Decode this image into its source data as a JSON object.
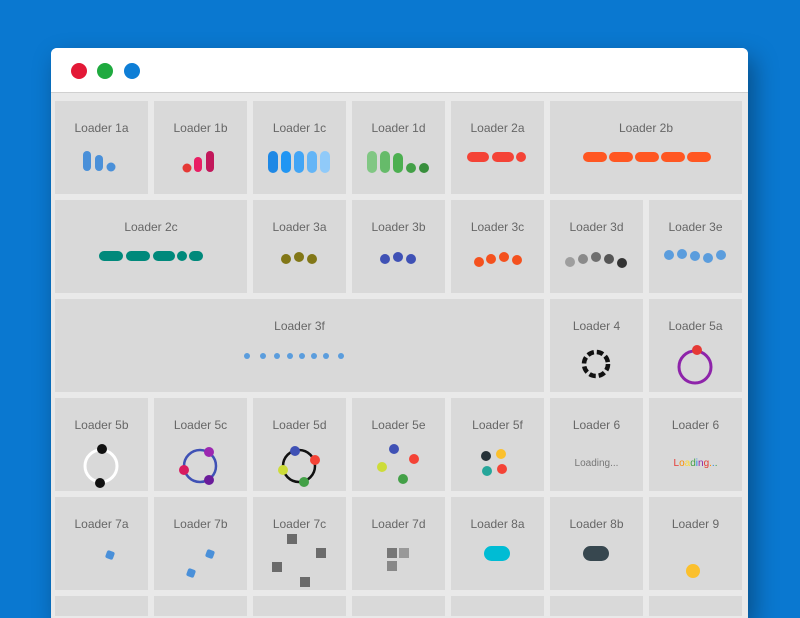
{
  "window": {
    "buttons": [
      "close",
      "minimize",
      "maximize"
    ]
  },
  "colors": {
    "page_bg": "#0a78d0",
    "card_bg": "#d9d9d9",
    "blue": "#4a90d9",
    "pink": "#e91e63",
    "green": "#43a047",
    "red": "#f44336",
    "orange": "#ff5722",
    "teal": "#00897b",
    "olive": "#827717",
    "indigo": "#3f51b5",
    "cyan": "#00bcd4",
    "slate": "#37474f",
    "yellow": "#fbc02d",
    "purple": "#9c27b0"
  },
  "loaders": [
    {
      "label": "Loader 1a"
    },
    {
      "label": "Loader 1b"
    },
    {
      "label": "Loader 1c"
    },
    {
      "label": "Loader 1d"
    },
    {
      "label": "Loader 2a"
    },
    {
      "label": "Loader 2b"
    },
    {
      "label": "Loader 2c"
    },
    {
      "label": "Loader 3a"
    },
    {
      "label": "Loader 3b"
    },
    {
      "label": "Loader 3c"
    },
    {
      "label": "Loader 3d"
    },
    {
      "label": "Loader 3e"
    },
    {
      "label": "Loader 3f"
    },
    {
      "label": "Loader 4"
    },
    {
      "label": "Loader 5a"
    },
    {
      "label": "Loader 5b"
    },
    {
      "label": "Loader 5c"
    },
    {
      "label": "Loader 5d"
    },
    {
      "label": "Loader 5e"
    },
    {
      "label": "Loader 5f"
    },
    {
      "label": "Loader 6",
      "text": "Loading..."
    },
    {
      "label": "Loader 6",
      "text": "Loading...",
      "letter_colors": [
        "#e53935",
        "#fb8c00",
        "#fdd835",
        "#43a047",
        "#1e88e5",
        "#8e24aa",
        "#e53935",
        "#fb8c00",
        "#1e88e5",
        "#43a047"
      ]
    },
    {
      "label": "Loader 7a"
    },
    {
      "label": "Loader 7b"
    },
    {
      "label": "Loader 7c"
    },
    {
      "label": "Loader 7d"
    },
    {
      "label": "Loader 8a"
    },
    {
      "label": "Loader 8b"
    },
    {
      "label": "Loader 9"
    }
  ]
}
